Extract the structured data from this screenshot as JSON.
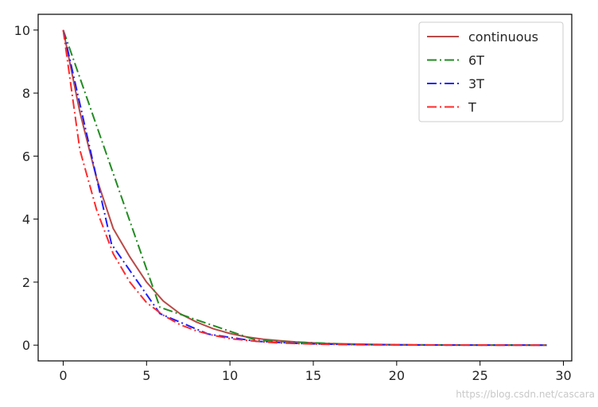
{
  "chart_data": {
    "type": "line",
    "title": "",
    "xlabel": "",
    "ylabel": "",
    "xlim": [
      -1.5,
      30.5
    ],
    "ylim": [
      -0.5,
      10.5
    ],
    "xticks": [
      0,
      5,
      10,
      15,
      20,
      25,
      30
    ],
    "yticks": [
      0,
      2,
      4,
      6,
      8,
      10
    ],
    "grid": false,
    "legend_position": "top-right",
    "series": [
      {
        "name": "continuous",
        "color": "#b94a48",
        "style": "solid",
        "x": [
          0,
          1,
          2,
          3,
          4,
          5,
          6,
          7,
          8,
          9,
          10,
          11,
          12,
          13,
          14,
          15,
          16,
          17,
          18,
          19,
          20,
          21,
          22,
          23,
          24,
          25,
          26,
          27,
          28,
          29
        ],
        "y": [
          10,
          7.4,
          5.3,
          3.7,
          2.8,
          2.0,
          1.4,
          1.0,
          0.73,
          0.52,
          0.37,
          0.26,
          0.19,
          0.14,
          0.1,
          0.07,
          0.05,
          0.04,
          0.03,
          0.02,
          0.015,
          0.01,
          0.008,
          0.006,
          0.004,
          0.003,
          0.002,
          0.002,
          0.001,
          0.001
        ]
      },
      {
        "name": "6T",
        "color": "#228b22",
        "style": "dashdot",
        "x": [
          0,
          5.8,
          11.6,
          17.4,
          23.2,
          29
        ],
        "y": [
          10,
          1.2,
          0.15,
          0.02,
          0.003,
          0.0005
        ]
      },
      {
        "name": "3T",
        "color": "#1f1fff",
        "style": "dashdot",
        "x": [
          0,
          2.9,
          5.8,
          8.7,
          11.6,
          14.5,
          17.4,
          20.3,
          23.2,
          26.1,
          29
        ],
        "y": [
          10,
          3.2,
          1.0,
          0.35,
          0.12,
          0.045,
          0.016,
          0.006,
          0.002,
          0.001,
          0.0004
        ]
      },
      {
        "name": "T",
        "color": "#ff2a2a",
        "style": "dashdot",
        "x": [
          0,
          1,
          2,
          3,
          4,
          5,
          6,
          7,
          8,
          9,
          10,
          11,
          12,
          13,
          14,
          15,
          16,
          17,
          18,
          19,
          20,
          21,
          22,
          23,
          24,
          25,
          26,
          27,
          28,
          29
        ],
        "y": [
          10,
          6.2,
          4.3,
          2.9,
          2.0,
          1.35,
          0.95,
          0.65,
          0.45,
          0.31,
          0.21,
          0.15,
          0.1,
          0.07,
          0.05,
          0.035,
          0.024,
          0.017,
          0.012,
          0.008,
          0.006,
          0.004,
          0.003,
          0.002,
          0.0015,
          0.001,
          0.0007,
          0.0005,
          0.0003,
          0.0002
        ]
      }
    ]
  },
  "watermark": "https://blog.csdn.net/cascara"
}
